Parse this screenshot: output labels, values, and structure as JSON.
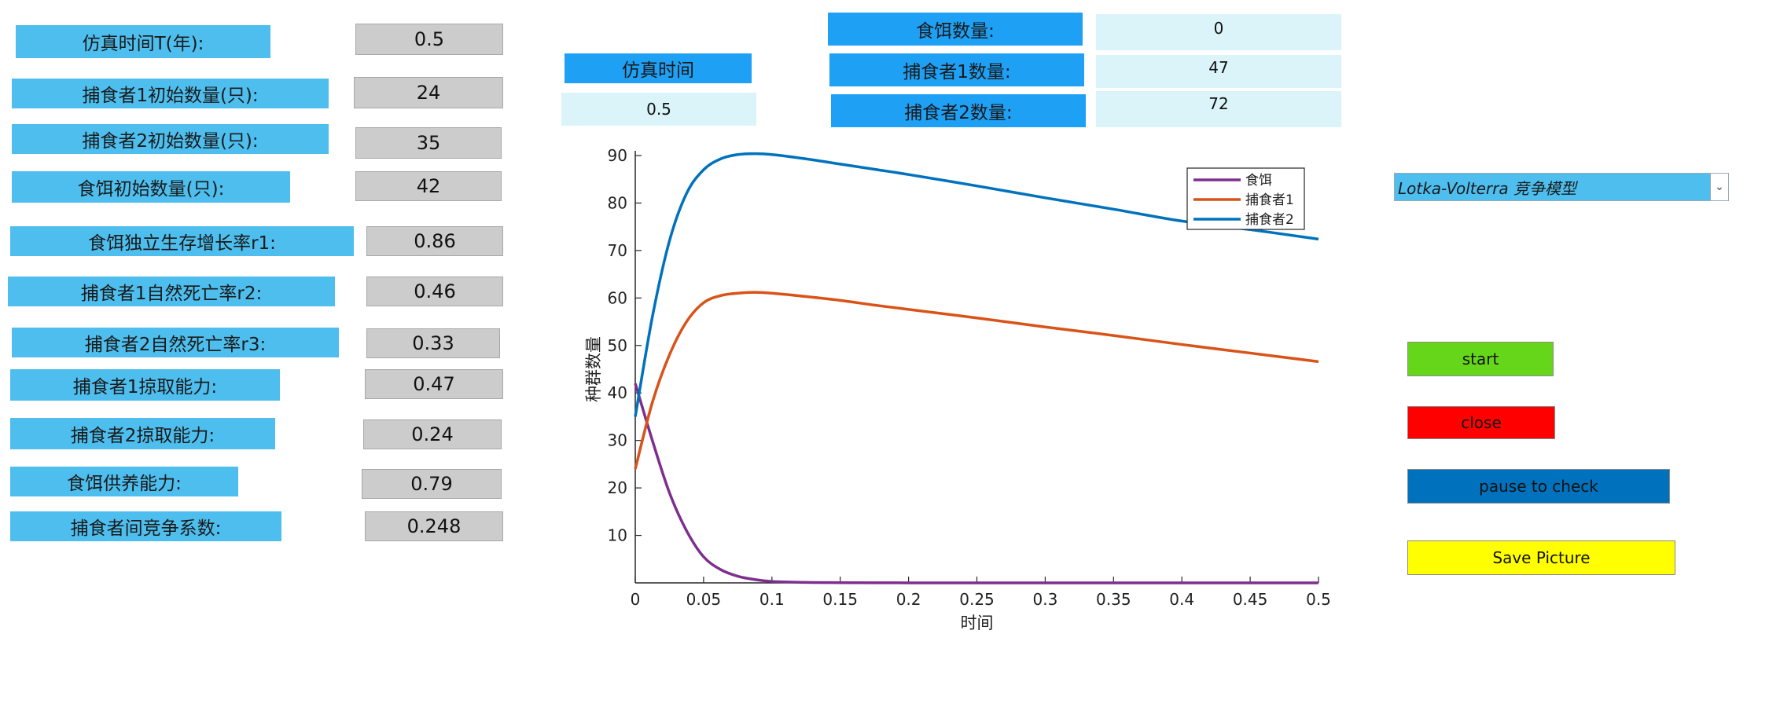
{
  "params": [
    {
      "label": "仿真时间T(年):",
      "value": "0.5"
    },
    {
      "label": "捕食者1初始数量(只):",
      "value": "24"
    },
    {
      "label": "捕食者2初始数量(只):",
      "value": "35"
    },
    {
      "label": "食饵初始数量(只):",
      "value": "42"
    },
    {
      "label": "食饵独立生存增长率r1:",
      "value": "0.86"
    },
    {
      "label": "捕食者1自然死亡率r2:",
      "value": "0.46"
    },
    {
      "label": "捕食者2自然死亡率r3:",
      "value": "0.33"
    },
    {
      "label": "捕食者1掠取能力:",
      "value": "0.47"
    },
    {
      "label": "捕食者2掠取能力:",
      "value": "0.24"
    },
    {
      "label": "食饵供养能力:",
      "value": "0.79"
    },
    {
      "label": "捕食者间竞争系数:",
      "value": "0.248"
    }
  ],
  "status": {
    "sim_time_label": "仿真时间",
    "sim_time_value": "0.5",
    "prey_label": "食饵数量:",
    "prey_value": "0",
    "pred1_label": "捕食者1数量:",
    "pred1_value": "47",
    "pred2_label": "捕食者2数量:",
    "pred2_value": "72"
  },
  "model_select": {
    "selected": "Lotka-Volterra 竞争模型"
  },
  "buttons": {
    "start": "start",
    "close": "close",
    "pause": "pause to check",
    "save": "Save Picture"
  },
  "colors": {
    "label_bg": "#4DBEEE",
    "status_label_bg": "#1EA0F5",
    "status_value_bg": "#DAF4FA",
    "start": "#66D61A",
    "close": "#FF0000",
    "pause": "#0072BD",
    "save": "#FFFF00"
  },
  "chart_data": {
    "type": "line",
    "xlabel": "时间",
    "ylabel": "种群数量",
    "xlim": [
      0,
      0.5
    ],
    "ylim": [
      0,
      90
    ],
    "xticks": [
      0,
      0.05,
      0.1,
      0.15,
      0.2,
      0.25,
      0.3,
      0.35,
      0.4,
      0.45,
      0.5
    ],
    "yticks": [
      10,
      20,
      30,
      40,
      50,
      60,
      70,
      80,
      90
    ],
    "xtick_labels": [
      "0",
      "0.05",
      "0.1",
      "0.15",
      "0.2",
      "0.25",
      "0.3",
      "0.35",
      "0.4",
      "0.45",
      "0.5"
    ],
    "ytick_labels": [
      "10",
      "20",
      "30",
      "40",
      "50",
      "60",
      "70",
      "80",
      "90"
    ],
    "legend_position": "top-right",
    "x": [
      0,
      0.0125,
      0.025,
      0.0375,
      0.05,
      0.0625,
      0.075,
      0.0875,
      0.1,
      0.125,
      0.15,
      0.175,
      0.2,
      0.25,
      0.3,
      0.35,
      0.4,
      0.45,
      0.5
    ],
    "series": [
      {
        "name": "食饵",
        "color": "#7E2F8E",
        "values": [
          42,
          30,
          19,
          11,
          5.5,
          2.8,
          1.4,
          0.7,
          0.3,
          0.1,
          0.05,
          0.02,
          0.01,
          0,
          0,
          0,
          0,
          0,
          0
        ]
      },
      {
        "name": "捕食者1",
        "color": "#D95319",
        "values": [
          24,
          38,
          48,
          55,
          59,
          60.5,
          61,
          61.2,
          61,
          60.3,
          59.5,
          58.5,
          57.6,
          55.8,
          53.9,
          52.1,
          50.2,
          48.4,
          46.6
        ]
      },
      {
        "name": "捕食者2",
        "color": "#0072BD",
        "values": [
          35,
          56,
          72,
          82,
          87,
          89.3,
          90.2,
          90.4,
          90.2,
          89.3,
          88.2,
          87.1,
          86,
          83.6,
          81.1,
          78.7,
          76.2,
          74.4,
          72.4
        ]
      }
    ]
  }
}
